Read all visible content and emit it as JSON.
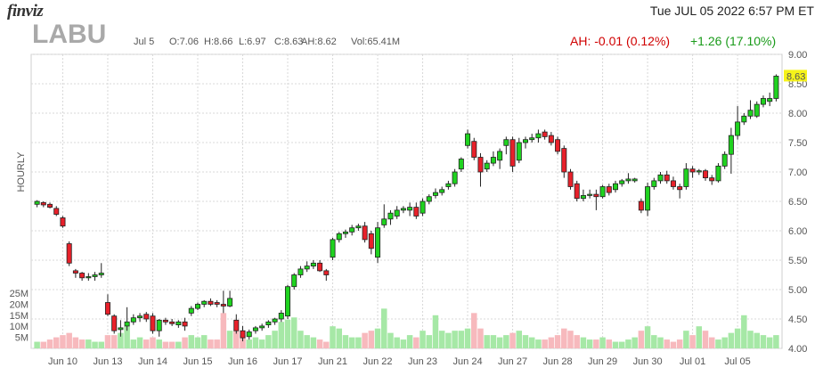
{
  "header": {
    "logo": "finviz",
    "datetime": "Tue JUL 05 2022 6:57 PM ET",
    "ticker": "LABU",
    "date": "Jul 5",
    "open": "O:7.06",
    "high": "H:8.66",
    "low": "L:6.97",
    "close": "C:8.63",
    "ah_price": "AH:8.62",
    "volume": "Vol:65.41M",
    "ah_change": "AH: -0.01 (0.12%)",
    "change": "+1.26 (17.10%)"
  },
  "colors": {
    "up": "#1fd31f",
    "down": "#e8202a",
    "up_volume": "#a6e8a6",
    "down_volume": "#f7b9bd",
    "last_price_bg": "#f6f31a"
  },
  "chart_data": {
    "type": "candlestick",
    "interval_label": "HOURLY",
    "last_price_label": "8.63",
    "y_ticks": [
      "4.00",
      "4.50",
      "5.00",
      "5.50",
      "6.00",
      "6.50",
      "7.00",
      "7.50",
      "8.00",
      "8.50",
      "9.00"
    ],
    "ylim": [
      4.0,
      9.0
    ],
    "volume_ticks": [
      "5M",
      "10M",
      "15M",
      "20M",
      "25M"
    ],
    "volume_lim": [
      0,
      25
    ],
    "x_labels": [
      {
        "label": "Jun 10",
        "index": 4
      },
      {
        "label": "Jun 13",
        "index": 11
      },
      {
        "label": "Jun 14",
        "index": 18
      },
      {
        "label": "Jun 15",
        "index": 25
      },
      {
        "label": "Jun 16",
        "index": 32
      },
      {
        "label": "Jun 17",
        "index": 39
      },
      {
        "label": "Jun 21",
        "index": 46
      },
      {
        "label": "Jun 22",
        "index": 53
      },
      {
        "label": "Jun 23",
        "index": 60
      },
      {
        "label": "Jun 24",
        "index": 67
      },
      {
        "label": "Jun 27",
        "index": 74
      },
      {
        "label": "Jun 28",
        "index": 81
      },
      {
        "label": "Jun 29",
        "index": 88
      },
      {
        "label": "Jun 30",
        "index": 95
      },
      {
        "label": "Jul 01",
        "index": 102
      },
      {
        "label": "Jul 05",
        "index": 109
      }
    ],
    "candles": [
      {
        "o": 6.45,
        "h": 6.52,
        "l": 6.4,
        "c": 6.5,
        "v": 3
      },
      {
        "o": 6.48,
        "h": 6.5,
        "l": 6.4,
        "c": 6.44,
        "v": 3
      },
      {
        "o": 6.45,
        "h": 6.48,
        "l": 6.38,
        "c": 6.4,
        "v": 4
      },
      {
        "o": 6.38,
        "h": 6.42,
        "l": 6.25,
        "c": 6.28,
        "v": 5
      },
      {
        "o": 6.22,
        "h": 6.25,
        "l": 6.05,
        "c": 6.08,
        "v": 6
      },
      {
        "o": 5.78,
        "h": 5.82,
        "l": 5.4,
        "c": 5.45,
        "v": 7
      },
      {
        "o": 5.32,
        "h": 5.35,
        "l": 5.2,
        "c": 5.28,
        "v": 5
      },
      {
        "o": 5.28,
        "h": 5.3,
        "l": 5.15,
        "c": 5.2,
        "v": 4
      },
      {
        "o": 5.2,
        "h": 5.28,
        "l": 5.15,
        "c": 5.22,
        "v": 4
      },
      {
        "o": 5.22,
        "h": 5.3,
        "l": 5.15,
        "c": 5.25,
        "v": 3
      },
      {
        "o": 5.25,
        "h": 5.45,
        "l": 5.2,
        "c": 5.28,
        "v": 3
      },
      {
        "o": 4.78,
        "h": 4.92,
        "l": 4.55,
        "c": 4.58,
        "v": 6
      },
      {
        "o": 4.55,
        "h": 4.58,
        "l": 4.25,
        "c": 4.3,
        "v": 6
      },
      {
        "o": 4.32,
        "h": 4.48,
        "l": 4.2,
        "c": 4.35,
        "v": 7
      },
      {
        "o": 4.38,
        "h": 4.7,
        "l": 4.3,
        "c": 4.45,
        "v": 10
      },
      {
        "o": 4.45,
        "h": 4.58,
        "l": 4.4,
        "c": 4.52,
        "v": 4
      },
      {
        "o": 4.52,
        "h": 4.6,
        "l": 4.45,
        "c": 4.55,
        "v": 5
      },
      {
        "o": 4.58,
        "h": 4.62,
        "l": 4.45,
        "c": 4.5,
        "v": 4
      },
      {
        "o": 4.55,
        "h": 4.6,
        "l": 4.25,
        "c": 4.3,
        "v": 5
      },
      {
        "o": 4.3,
        "h": 4.5,
        "l": 4.2,
        "c": 4.48,
        "v": 4
      },
      {
        "o": 4.48,
        "h": 4.52,
        "l": 4.4,
        "c": 4.45,
        "v": 3
      },
      {
        "o": 4.45,
        "h": 4.5,
        "l": 4.38,
        "c": 4.42,
        "v": 3
      },
      {
        "o": 4.4,
        "h": 4.48,
        "l": 4.35,
        "c": 4.45,
        "v": 3
      },
      {
        "o": 4.45,
        "h": 4.52,
        "l": 4.3,
        "c": 4.38,
        "v": 5
      },
      {
        "o": 4.6,
        "h": 4.72,
        "l": 4.55,
        "c": 4.68,
        "v": 6
      },
      {
        "o": 4.68,
        "h": 4.78,
        "l": 4.65,
        "c": 4.75,
        "v": 5
      },
      {
        "o": 4.75,
        "h": 4.82,
        "l": 4.7,
        "c": 4.8,
        "v": 6
      },
      {
        "o": 4.8,
        "h": 4.85,
        "l": 4.72,
        "c": 4.75,
        "v": 4
      },
      {
        "o": 4.78,
        "h": 4.82,
        "l": 4.7,
        "c": 4.75,
        "v": 4
      },
      {
        "o": 4.75,
        "h": 4.98,
        "l": 4.6,
        "c": 4.72,
        "v": 16
      },
      {
        "o": 4.72,
        "h": 4.98,
        "l": 4.7,
        "c": 4.85,
        "v": 8
      },
      {
        "o": 4.48,
        "h": 4.58,
        "l": 4.25,
        "c": 4.3,
        "v": 8
      },
      {
        "o": 4.3,
        "h": 4.38,
        "l": 4.12,
        "c": 4.18,
        "v": 6
      },
      {
        "o": 4.2,
        "h": 4.32,
        "l": 4.15,
        "c": 4.28,
        "v": 4
      },
      {
        "o": 4.3,
        "h": 4.38,
        "l": 4.25,
        "c": 4.35,
        "v": 5
      },
      {
        "o": 4.35,
        "h": 4.42,
        "l": 4.3,
        "c": 4.38,
        "v": 4
      },
      {
        "o": 4.4,
        "h": 4.48,
        "l": 4.35,
        "c": 4.45,
        "v": 6
      },
      {
        "o": 4.45,
        "h": 4.52,
        "l": 4.4,
        "c": 4.5,
        "v": 8
      },
      {
        "o": 4.5,
        "h": 4.65,
        "l": 4.45,
        "c": 4.6,
        "v": 12
      },
      {
        "o": 4.55,
        "h": 5.08,
        "l": 4.5,
        "c": 5.05,
        "v": 13
      },
      {
        "o": 5.05,
        "h": 5.28,
        "l": 5.0,
        "c": 5.25,
        "v": 14
      },
      {
        "o": 5.25,
        "h": 5.4,
        "l": 5.2,
        "c": 5.35,
        "v": 8
      },
      {
        "o": 5.35,
        "h": 5.48,
        "l": 5.3,
        "c": 5.4,
        "v": 6
      },
      {
        "o": 5.4,
        "h": 5.5,
        "l": 5.35,
        "c": 5.45,
        "v": 5
      },
      {
        "o": 5.45,
        "h": 5.5,
        "l": 5.3,
        "c": 5.32,
        "v": 4
      },
      {
        "o": 5.32,
        "h": 5.35,
        "l": 5.15,
        "c": 5.25,
        "v": 3
      },
      {
        "o": 5.55,
        "h": 5.88,
        "l": 5.5,
        "c": 5.85,
        "v": 10
      },
      {
        "o": 5.85,
        "h": 5.98,
        "l": 5.8,
        "c": 5.95,
        "v": 9
      },
      {
        "o": 5.95,
        "h": 6.02,
        "l": 5.88,
        "c": 5.98,
        "v": 6
      },
      {
        "o": 5.98,
        "h": 6.1,
        "l": 5.92,
        "c": 6.05,
        "v": 5
      },
      {
        "o": 6.05,
        "h": 6.12,
        "l": 6.0,
        "c": 6.08,
        "v": 5
      },
      {
        "o": 6.08,
        "h": 6.15,
        "l": 5.8,
        "c": 5.85,
        "v": 7
      },
      {
        "o": 5.95,
        "h": 6.0,
        "l": 5.6,
        "c": 5.7,
        "v": 8
      },
      {
        "o": 5.55,
        "h": 6.15,
        "l": 5.45,
        "c": 6.05,
        "v": 9
      },
      {
        "o": 6.1,
        "h": 6.45,
        "l": 6.05,
        "c": 6.2,
        "v": 18
      },
      {
        "o": 6.2,
        "h": 6.35,
        "l": 6.1,
        "c": 6.3,
        "v": 7
      },
      {
        "o": 6.25,
        "h": 6.42,
        "l": 6.2,
        "c": 6.35,
        "v": 5
      },
      {
        "o": 6.35,
        "h": 6.42,
        "l": 6.3,
        "c": 6.38,
        "v": 4
      },
      {
        "o": 6.35,
        "h": 6.48,
        "l": 6.25,
        "c": 6.4,
        "v": 6
      },
      {
        "o": 6.4,
        "h": 6.48,
        "l": 6.2,
        "c": 6.25,
        "v": 5
      },
      {
        "o": 6.3,
        "h": 6.55,
        "l": 6.25,
        "c": 6.5,
        "v": 8
      },
      {
        "o": 6.5,
        "h": 6.62,
        "l": 6.45,
        "c": 6.58,
        "v": 6
      },
      {
        "o": 6.6,
        "h": 6.72,
        "l": 6.55,
        "c": 6.65,
        "v": 15
      },
      {
        "o": 6.65,
        "h": 6.75,
        "l": 6.6,
        "c": 6.7,
        "v": 8
      },
      {
        "o": 6.75,
        "h": 6.85,
        "l": 6.7,
        "c": 6.8,
        "v": 7
      },
      {
        "o": 6.8,
        "h": 7.05,
        "l": 6.75,
        "c": 7.0,
        "v": 8
      },
      {
        "o": 7.05,
        "h": 7.25,
        "l": 7.0,
        "c": 7.22,
        "v": 8
      },
      {
        "o": 7.45,
        "h": 7.72,
        "l": 7.4,
        "c": 7.65,
        "v": 9
      },
      {
        "o": 7.52,
        "h": 7.58,
        "l": 7.2,
        "c": 7.25,
        "v": 16
      },
      {
        "o": 7.25,
        "h": 7.32,
        "l": 6.75,
        "c": 7.0,
        "v": 9
      },
      {
        "o": 7.05,
        "h": 7.2,
        "l": 7.0,
        "c": 7.15,
        "v": 6
      },
      {
        "o": 7.15,
        "h": 7.35,
        "l": 7.1,
        "c": 7.25,
        "v": 6
      },
      {
        "o": 7.2,
        "h": 7.4,
        "l": 7.05,
        "c": 7.35,
        "v": 5
      },
      {
        "o": 7.45,
        "h": 7.6,
        "l": 7.3,
        "c": 7.55,
        "v": 6
      },
      {
        "o": 7.55,
        "h": 7.6,
        "l": 7.0,
        "c": 7.1,
        "v": 7
      },
      {
        "o": 7.2,
        "h": 7.58,
        "l": 7.15,
        "c": 7.5,
        "v": 8
      },
      {
        "o": 7.5,
        "h": 7.6,
        "l": 7.4,
        "c": 7.55,
        "v": 6
      },
      {
        "o": 7.55,
        "h": 7.65,
        "l": 7.5,
        "c": 7.58,
        "v": 5
      },
      {
        "o": 7.58,
        "h": 7.72,
        "l": 7.5,
        "c": 7.65,
        "v": 4
      },
      {
        "o": 7.68,
        "h": 7.72,
        "l": 7.55,
        "c": 7.6,
        "v": 4
      },
      {
        "o": 7.62,
        "h": 7.68,
        "l": 7.45,
        "c": 7.5,
        "v": 5
      },
      {
        "o": 7.55,
        "h": 7.6,
        "l": 7.3,
        "c": 7.35,
        "v": 6
      },
      {
        "o": 7.4,
        "h": 7.45,
        "l": 6.9,
        "c": 7.0,
        "v": 9
      },
      {
        "o": 7.0,
        "h": 7.05,
        "l": 6.7,
        "c": 6.75,
        "v": 8
      },
      {
        "o": 6.8,
        "h": 6.85,
        "l": 6.5,
        "c": 6.55,
        "v": 6
      },
      {
        "o": 6.55,
        "h": 6.7,
        "l": 6.5,
        "c": 6.6,
        "v": 5
      },
      {
        "o": 6.6,
        "h": 6.7,
        "l": 6.55,
        "c": 6.62,
        "v": 4
      },
      {
        "o": 6.62,
        "h": 6.7,
        "l": 6.35,
        "c": 6.58,
        "v": 4
      },
      {
        "o": 6.58,
        "h": 6.78,
        "l": 6.55,
        "c": 6.75,
        "v": 5
      },
      {
        "o": 6.75,
        "h": 6.8,
        "l": 6.6,
        "c": 6.65,
        "v": 4
      },
      {
        "o": 6.7,
        "h": 6.85,
        "l": 6.65,
        "c": 6.8,
        "v": 3
      },
      {
        "o": 6.8,
        "h": 6.88,
        "l": 6.75,
        "c": 6.85,
        "v": 3
      },
      {
        "o": 6.85,
        "h": 6.98,
        "l": 6.8,
        "c": 6.88,
        "v": 4
      },
      {
        "o": 6.85,
        "h": 6.9,
        "l": 6.82,
        "c": 6.88,
        "v": 5
      },
      {
        "o": 6.5,
        "h": 6.55,
        "l": 6.3,
        "c": 6.35,
        "v": 8
      },
      {
        "o": 6.35,
        "h": 6.82,
        "l": 6.25,
        "c": 6.75,
        "v": 10
      },
      {
        "o": 6.75,
        "h": 6.9,
        "l": 6.7,
        "c": 6.85,
        "v": 6
      },
      {
        "o": 6.85,
        "h": 7.0,
        "l": 6.8,
        "c": 6.95,
        "v": 5
      },
      {
        "o": 6.95,
        "h": 7.02,
        "l": 6.8,
        "c": 6.85,
        "v": 4
      },
      {
        "o": 6.85,
        "h": 6.92,
        "l": 6.7,
        "c": 6.75,
        "v": 3
      },
      {
        "o": 6.75,
        "h": 6.8,
        "l": 6.55,
        "c": 6.7,
        "v": 4
      },
      {
        "o": 6.75,
        "h": 7.15,
        "l": 6.7,
        "c": 7.05,
        "v": 8
      },
      {
        "o": 7.05,
        "h": 7.1,
        "l": 6.9,
        "c": 7.0,
        "v": 6
      },
      {
        "o": 7.0,
        "h": 7.05,
        "l": 6.95,
        "c": 7.02,
        "v": 10
      },
      {
        "o": 7.02,
        "h": 7.05,
        "l": 6.85,
        "c": 6.9,
        "v": 8
      },
      {
        "o": 6.9,
        "h": 6.95,
        "l": 6.78,
        "c": 6.85,
        "v": 5
      },
      {
        "o": 6.85,
        "h": 7.15,
        "l": 6.82,
        "c": 7.1,
        "v": 4
      },
      {
        "o": 7.1,
        "h": 7.35,
        "l": 7.05,
        "c": 7.3,
        "v": 5
      },
      {
        "o": 7.3,
        "h": 7.75,
        "l": 6.97,
        "c": 7.62,
        "v": 7
      },
      {
        "o": 7.62,
        "h": 8.12,
        "l": 7.55,
        "c": 7.85,
        "v": 9
      },
      {
        "o": 7.85,
        "h": 8.0,
        "l": 7.8,
        "c": 7.95,
        "v": 15
      },
      {
        "o": 7.95,
        "h": 8.22,
        "l": 7.9,
        "c": 8.05,
        "v": 8
      },
      {
        "o": 7.95,
        "h": 8.2,
        "l": 7.92,
        "c": 8.15,
        "v": 7
      },
      {
        "o": 8.15,
        "h": 8.3,
        "l": 8.1,
        "c": 8.25,
        "v": 6
      },
      {
        "o": 8.2,
        "h": 8.35,
        "l": 8.12,
        "c": 8.25,
        "v": 5
      },
      {
        "o": 8.25,
        "h": 8.66,
        "l": 8.2,
        "c": 8.63,
        "v": 6
      }
    ]
  }
}
